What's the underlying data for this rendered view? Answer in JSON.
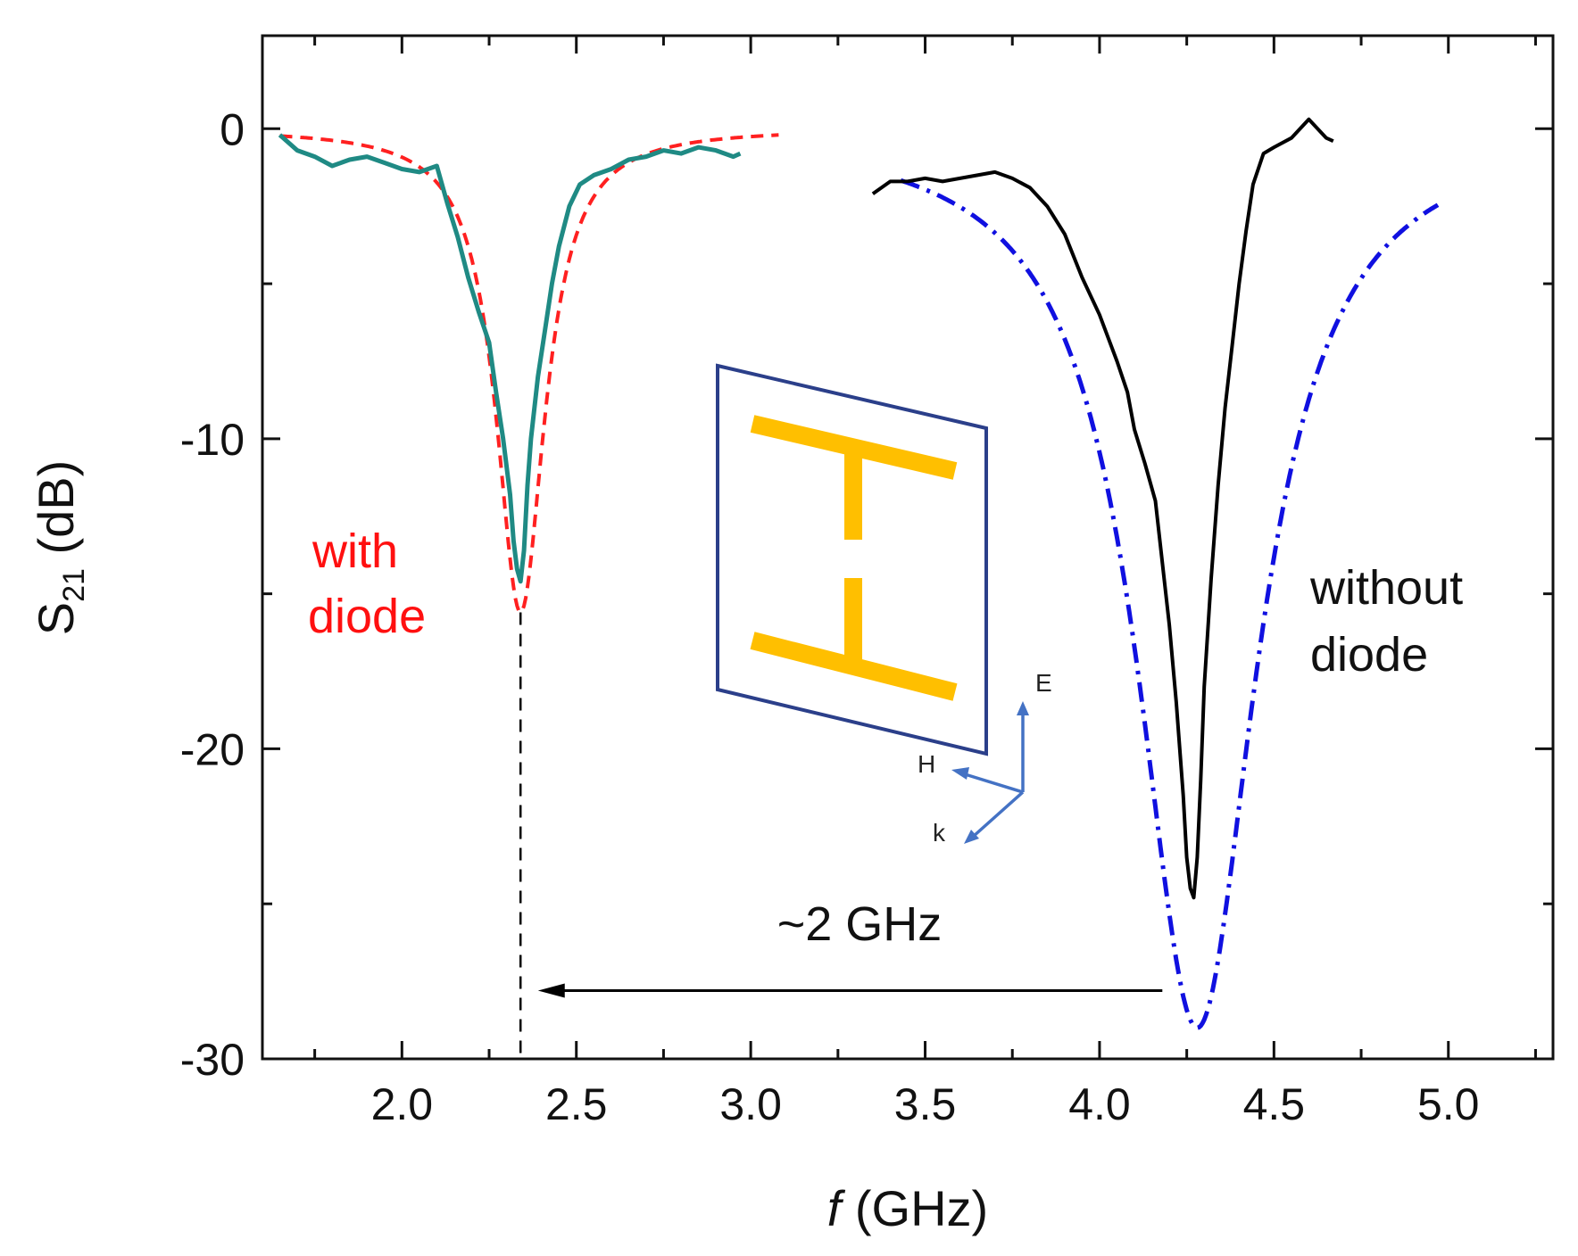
{
  "chart_data": {
    "type": "line",
    "title": "",
    "xlabel_italic": "f",
    "xlabel_rest": " (GHz)",
    "ylabel_main": "S",
    "ylabel_sub": "21",
    "ylabel_unit": " (dB)",
    "xlim": [
      1.6,
      5.3
    ],
    "ylim": [
      -30,
      3
    ],
    "x_ticks": [
      2.0,
      2.5,
      3.0,
      3.5,
      4.0,
      4.5,
      5.0
    ],
    "x_tick_labels": [
      "2.0",
      "2.5",
      "3.0",
      "3.5",
      "4.0",
      "4.5",
      "5.0"
    ],
    "x_minor_ticks": [
      1.75,
      2.25,
      2.75,
      3.25,
      3.75,
      4.25,
      4.75,
      5.25
    ],
    "y_ticks": [
      0,
      -10,
      -20,
      -30
    ],
    "y_tick_labels": [
      "0",
      "-10",
      "-20",
      "-30"
    ],
    "y_minor_ticks": [
      -5,
      -15,
      -25
    ],
    "grid": false,
    "series": [
      {
        "name": "with diode (measured)",
        "color": "#1f8a84",
        "style": "solid",
        "x": [
          1.65,
          1.7,
          1.75,
          1.8,
          1.85,
          1.9,
          1.95,
          2.0,
          2.05,
          2.1,
          2.13,
          2.16,
          2.19,
          2.22,
          2.25,
          2.27,
          2.29,
          2.31,
          2.32,
          2.33,
          2.34,
          2.35,
          2.36,
          2.37,
          2.39,
          2.41,
          2.43,
          2.45,
          2.48,
          2.51,
          2.55,
          2.6,
          2.65,
          2.7,
          2.75,
          2.8,
          2.85,
          2.9,
          2.95,
          2.97
        ],
        "y": [
          -0.2,
          -0.7,
          -0.9,
          -1.2,
          -1.0,
          -0.9,
          -1.1,
          -1.3,
          -1.4,
          -1.2,
          -2.4,
          -3.5,
          -4.8,
          -5.9,
          -6.9,
          -8.5,
          -10.0,
          -11.8,
          -13.3,
          -14.2,
          -14.6,
          -13.6,
          -11.5,
          -10.0,
          -8.0,
          -6.5,
          -5.0,
          -3.8,
          -2.5,
          -1.8,
          -1.5,
          -1.3,
          -1.0,
          -0.9,
          -0.7,
          -0.8,
          -0.6,
          -0.7,
          -0.9,
          -0.8
        ]
      },
      {
        "name": "with diode (fit)",
        "color": "#ff2020",
        "style": "dashed",
        "fit": {
          "f0": 2.34,
          "depth": 15.6,
          "hwhm": 0.085,
          "x_start": 1.65,
          "x_end": 3.08
        }
      },
      {
        "name": "without diode (measured)",
        "color": "#000000",
        "style": "solid",
        "x": [
          3.35,
          3.4,
          3.45,
          3.5,
          3.55,
          3.6,
          3.65,
          3.7,
          3.75,
          3.8,
          3.85,
          3.9,
          3.95,
          4.0,
          4.05,
          4.08,
          4.1,
          4.13,
          4.16,
          4.18,
          4.2,
          4.22,
          4.24,
          4.25,
          4.26,
          4.27,
          4.28,
          4.29,
          4.3,
          4.32,
          4.34,
          4.36,
          4.38,
          4.4,
          4.42,
          4.44,
          4.47,
          4.5,
          4.55,
          4.6,
          4.65,
          4.67
        ],
        "y": [
          -2.1,
          -1.7,
          -1.7,
          -1.6,
          -1.7,
          -1.6,
          -1.5,
          -1.4,
          -1.6,
          -1.9,
          -2.5,
          -3.4,
          -4.8,
          -6.0,
          -7.5,
          -8.5,
          -9.7,
          -10.8,
          -12.0,
          -14.0,
          -16.0,
          -18.5,
          -21.5,
          -23.5,
          -24.5,
          -24.8,
          -23.5,
          -21.0,
          -18.0,
          -14.5,
          -11.5,
          -9.0,
          -7.0,
          -5.0,
          -3.3,
          -1.8,
          -0.8,
          -0.6,
          -0.3,
          0.3,
          -0.3,
          -0.4
        ]
      },
      {
        "name": "without diode (fit)",
        "color": "#1010e0",
        "style": "dash-dot",
        "fit": {
          "f0": 4.28,
          "depth": 29.0,
          "hwhm": 0.21,
          "x_start": 3.43,
          "x_end": 4.97
        }
      }
    ],
    "annotations": {
      "with_label_1": "with",
      "with_label_2": "diode",
      "without_label_1": "without",
      "without_label_2": "diode",
      "shift_label": "~2 GHz",
      "shift_from_x": 4.18,
      "shift_to_x": 2.39,
      "shift_y": -27.8,
      "dropline_x": 2.34,
      "dropline_y_top": -15.6,
      "dropline_y_bottom": -30,
      "inset_E": "E",
      "inset_H": "H",
      "inset_k": "k"
    },
    "colors": {
      "with_text": "#ff1010",
      "without_text": "#111111",
      "arrow": "#000000",
      "frame": "#2b3f8a",
      "resonator": "#ffbf00",
      "axes_arrows": "#4472c4"
    }
  }
}
